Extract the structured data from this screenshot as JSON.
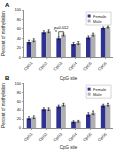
{
  "chart_data": [
    {
      "type": "bar",
      "title": "A",
      "xlabel": "CpG site",
      "ylabel": "Percent of methylation",
      "categories": [
        "CpG1",
        "CpG2",
        "CpG3",
        "CpG4",
        "CpG5",
        "CpG6"
      ],
      "series": [
        {
          "name": "Female",
          "color": "#2e3192",
          "values": [
            32,
            53,
            40,
            28,
            42,
            62
          ],
          "errors": [
            4,
            3,
            3,
            3,
            3,
            2
          ]
        },
        {
          "name": "Male",
          "color": "#b0b0b0",
          "values": [
            36,
            55,
            48,
            30,
            48,
            64
          ],
          "errors": [
            3,
            3,
            3,
            3,
            3,
            2
          ]
        }
      ],
      "annotations": [
        {
          "text": "p=0.012",
          "x": "CpG3"
        },
        {
          "text": "*",
          "x": "CpG3",
          "series": "Female"
        }
      ],
      "ylim": [
        0,
        100
      ],
      "yticks": [
        0,
        20,
        40,
        60,
        80,
        100
      ],
      "grid": false,
      "legend": "upper right"
    },
    {
      "type": "bar",
      "title": "B",
      "xlabel": "CpG site",
      "ylabel": "Percent of methylation",
      "categories": [
        "CpG1",
        "CpG2",
        "CpG3",
        "CpG4",
        "CpG5",
        "CpG6"
      ],
      "series": [
        {
          "name": "Female",
          "color": "#2e3192",
          "values": [
            22,
            42,
            48,
            14,
            30,
            50
          ],
          "errors": [
            3,
            3,
            3,
            2,
            4,
            3
          ]
        },
        {
          "name": "Male",
          "color": "#b0b0b0",
          "values": [
            24,
            42,
            52,
            15,
            34,
            52
          ],
          "errors": [
            3,
            3,
            3,
            2,
            4,
            3
          ]
        }
      ],
      "ylim": [
        0,
        100
      ],
      "yticks": [
        0,
        20,
        40,
        60,
        80,
        100
      ],
      "grid": false,
      "legend": "upper right"
    }
  ]
}
